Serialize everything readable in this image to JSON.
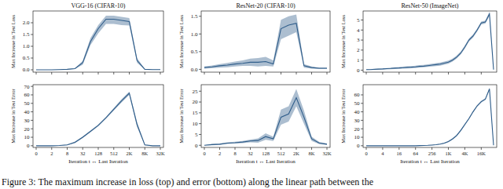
{
  "chart_data": [
    {
      "type": "line",
      "title": "VGG-16 (CIFAR-10)",
      "ylabel": "Max Increase in Test Loss",
      "grid": false,
      "tick_labels": "y",
      "categories": [
        "0",
        null,
        "2",
        null,
        "8",
        null,
        "32",
        null,
        "128",
        null,
        "512",
        null,
        "2K",
        null,
        "8K",
        null,
        "32K"
      ],
      "ylim": [
        -0.1,
        2.5
      ],
      "yticks": [
        {
          "value": 0,
          "label": "0.0"
        },
        0.5,
        {
          "value": 1,
          "label": "1.0"
        },
        1.5,
        {
          "value": 2,
          "label": "2.0"
        }
      ],
      "series": [
        {
          "color": "#2f5d8a",
          "values": [
            0,
            0,
            0,
            0.01,
            0.02,
            0.05,
            0.3,
            1.2,
            1.75,
            2.15,
            2.15,
            2.1,
            2.05,
            0.4,
            0.02,
            0.01,
            0.01
          ],
          "lower": [
            0,
            0,
            0,
            0,
            0.01,
            0.03,
            0.22,
            1.05,
            1.55,
            1.95,
            1.95,
            1.9,
            1.88,
            0.3,
            0.01,
            0,
            0
          ],
          "upper": [
            0,
            0,
            0,
            0.02,
            0.03,
            0.07,
            0.38,
            1.35,
            1.9,
            2.3,
            2.3,
            2.25,
            2.2,
            0.5,
            0.03,
            0.02,
            0.02
          ]
        }
      ]
    },
    {
      "type": "line",
      "title": "ResNet-20 (CIFAR-10)",
      "ylabel": "Max Increase in Test Loss",
      "grid": false,
      "tick_labels": "y",
      "categories": [
        "0",
        null,
        "2",
        null,
        "8",
        null,
        "32",
        null,
        "128",
        null,
        "512",
        null,
        "2K",
        null,
        "8K",
        null,
        "32K"
      ],
      "ylim": [
        -0.08,
        1.65
      ],
      "yticks": [
        {
          "value": 0,
          "label": "0.0"
        },
        0.5,
        {
          "value": 1,
          "label": "1.0"
        },
        1.5
      ],
      "series": [
        {
          "color": "#2f5d8a",
          "values": [
            0.05,
            0.07,
            0.1,
            0.12,
            0.15,
            0.17,
            0.2,
            0.2,
            0.22,
            0.15,
            1.15,
            1.25,
            1.3,
            0.1,
            0.05,
            0.03,
            0.03
          ],
          "lower": [
            0.02,
            0.03,
            0.05,
            0.06,
            0.08,
            0.1,
            0.1,
            0.08,
            0.1,
            0.08,
            0.85,
            0.95,
            1.05,
            0.05,
            0.02,
            0.01,
            0.01
          ],
          "upper": [
            0.08,
            0.11,
            0.15,
            0.18,
            0.22,
            0.25,
            0.3,
            0.32,
            0.35,
            0.25,
            1.4,
            1.5,
            1.55,
            0.15,
            0.08,
            0.05,
            0.05
          ]
        }
      ]
    },
    {
      "type": "line",
      "title": "ResNet-50 (ImageNet)",
      "ylabel": "Max Increase in Test Loss",
      "grid": false,
      "tick_labels": "y",
      "categories": [
        "0",
        null,
        null,
        null,
        "4",
        null,
        null,
        null,
        "16",
        null,
        null,
        null,
        "64",
        null,
        null,
        null,
        "256",
        null,
        null,
        null,
        "1K",
        null,
        null,
        null,
        "4K",
        null,
        null,
        null,
        "16K",
        null,
        null,
        null
      ],
      "ylim": [
        -0.2,
        5.9
      ],
      "yticks": [
        0,
        1,
        2,
        3,
        4,
        5
      ],
      "series": [
        {
          "color": "#2f5d8a",
          "values": [
            0.05,
            0.06,
            0.08,
            0.1,
            0.12,
            0.15,
            0.17,
            0.2,
            0.22,
            0.25,
            0.28,
            0.3,
            0.33,
            0.38,
            0.4,
            0.45,
            0.5,
            0.55,
            0.6,
            0.7,
            0.8,
            1.0,
            1.3,
            1.7,
            2.3,
            3.0,
            3.4,
            4.0,
            4.7,
            4.8,
            5.6,
            0.05
          ],
          "lower": [
            0.02,
            0.03,
            0.04,
            0.05,
            0.06,
            0.08,
            0.1,
            0.12,
            0.14,
            0.16,
            0.18,
            0.2,
            0.22,
            0.26,
            0.28,
            0.32,
            0.36,
            0.4,
            0.45,
            0.55,
            0.65,
            0.85,
            1.15,
            1.55,
            2.15,
            2.85,
            3.25,
            3.85,
            4.55,
            4.65,
            5.4,
            0.02
          ],
          "upper": [
            0.08,
            0.09,
            0.12,
            0.15,
            0.18,
            0.22,
            0.24,
            0.28,
            0.3,
            0.34,
            0.38,
            0.4,
            0.44,
            0.5,
            0.52,
            0.58,
            0.64,
            0.7,
            0.75,
            0.85,
            0.95,
            1.15,
            1.45,
            1.85,
            2.45,
            3.15,
            3.55,
            4.15,
            4.85,
            4.95,
            5.8,
            0.08
          ]
        }
      ]
    },
    {
      "type": "line",
      "ylabel": "Max Increase in Test Error",
      "xlabel": "Iteration t ↔ Last Iteration",
      "grid": false,
      "tick_labels": true,
      "categories": [
        "0",
        null,
        "2",
        null,
        "8",
        null,
        "32",
        null,
        "128",
        null,
        "512",
        null,
        "2K",
        null,
        "8K",
        null,
        "32K"
      ],
      "ylim": [
        -2,
        72
      ],
      "yticks": [
        0,
        10,
        20,
        30,
        40,
        50,
        60,
        70
      ],
      "series": [
        {
          "color": "#2f5d8a",
          "values": [
            0,
            0,
            0,
            0.3,
            1,
            4,
            10,
            17,
            24,
            33,
            43,
            53,
            62,
            25,
            1,
            0,
            0
          ],
          "lower": [
            0,
            0,
            0,
            0,
            0.5,
            3,
            9,
            16,
            23,
            32,
            41.5,
            51,
            60,
            22,
            0.5,
            0,
            0
          ],
          "upper": [
            0,
            0,
            0,
            0.6,
            1.5,
            5,
            11,
            18,
            25,
            34,
            44.5,
            55,
            64,
            28,
            1.5,
            0,
            0
          ]
        }
      ]
    },
    {
      "type": "line",
      "ylabel": "Max Increase in Test Error",
      "xlabel": "Iteration t ↔ Last Iteration",
      "grid": false,
      "tick_labels": true,
      "categories": [
        "0",
        null,
        "2",
        null,
        "8",
        null,
        "32",
        null,
        "128",
        null,
        "512",
        null,
        "2K",
        null,
        "8K",
        null,
        "32K"
      ],
      "ylim": [
        -1,
        28
      ],
      "yticks": [
        0,
        5,
        10,
        15,
        20,
        25
      ],
      "series": [
        {
          "color": "#2f5d8a",
          "values": [
            0,
            0.3,
            0.5,
            1,
            1.2,
            1.5,
            2,
            2.2,
            4,
            3,
            13,
            14.5,
            22,
            13,
            3,
            1,
            0.5
          ],
          "lower": [
            0,
            0,
            0.2,
            0.6,
            0.8,
            1,
            1.4,
            1.2,
            2.5,
            2,
            9.5,
            11,
            18,
            10,
            2,
            0.5,
            0.2
          ],
          "upper": [
            0,
            0.6,
            0.8,
            1.4,
            1.6,
            2,
            2.6,
            3.2,
            5.5,
            4,
            16.5,
            18,
            26,
            16,
            4,
            1.5,
            0.8
          ]
        }
      ]
    },
    {
      "type": "line",
      "ylabel": "Max Increase in Test Error",
      "xlabel": "Iteration t ↔ Last Iteration",
      "grid": false,
      "tick_labels": true,
      "categories": [
        "0",
        null,
        null,
        null,
        "4",
        null,
        null,
        null,
        "16",
        null,
        null,
        null,
        "64",
        null,
        null,
        null,
        "256",
        null,
        null,
        null,
        "1K",
        null,
        null,
        null,
        "4K",
        null,
        null,
        null,
        "16K",
        null,
        null,
        null
      ],
      "ylim": [
        -2,
        72
      ],
      "yticks": [
        0,
        10,
        20,
        30,
        40,
        50,
        60
      ],
      "series": [
        {
          "color": "#2f5d8a",
          "values": [
            0,
            0,
            0,
            0,
            0,
            0,
            0,
            0,
            0,
            0,
            0,
            0,
            0,
            0.2,
            0.3,
            0.5,
            0.8,
            1.2,
            2,
            3,
            5,
            8,
            12,
            18,
            25,
            32,
            40,
            47,
            52,
            55,
            67,
            0.5
          ],
          "lower": [
            0,
            0,
            0,
            0,
            0,
            0,
            0,
            0,
            0,
            0,
            0,
            0,
            0,
            0,
            0.1,
            0.3,
            0.5,
            0.9,
            1.6,
            2.5,
            4.3,
            7.2,
            11,
            17,
            24,
            31,
            39,
            46,
            51,
            54,
            65.5,
            0.2
          ],
          "upper": [
            0,
            0,
            0,
            0,
            0,
            0,
            0,
            0,
            0,
            0,
            0,
            0,
            0,
            0.4,
            0.5,
            0.7,
            1.1,
            1.5,
            2.4,
            3.5,
            5.7,
            8.8,
            13,
            19,
            26,
            33,
            41,
            48,
            53,
            56,
            68.5,
            0.8
          ]
        }
      ]
    }
  ],
  "caption": "Figure 3: The maximum increase in loss (top) and error (bottom) along the linear path between the"
}
